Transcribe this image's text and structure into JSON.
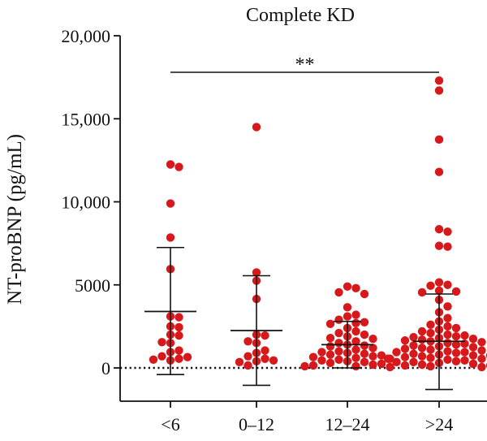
{
  "chart_data": {
    "type": "scatter",
    "title": "Complete KD",
    "xlabel": "",
    "ylabel": "NT-proBNP (pg/mL)",
    "ylim": [
      -2000,
      20000
    ],
    "yticks": [
      0,
      5000,
      10000,
      15000,
      20000
    ],
    "ytick_labels": [
      "0",
      "5000",
      "10,000",
      "15,000",
      "20,000"
    ],
    "categories": [
      "<6",
      "0–12",
      "12–24",
      ">24"
    ],
    "point_color": "#d7191c",
    "reference_line": {
      "y": 0,
      "style": "dotted"
    },
    "significance": {
      "label": "**",
      "from": "<6",
      "to": ">24",
      "y": 17800
    },
    "groups": [
      {
        "name": "<6",
        "mean": 3400,
        "sd_low": -400,
        "sd_high": 7250,
        "points": [
          12250,
          12100,
          9900,
          7850,
          5950,
          3100,
          3050,
          2500,
          2450,
          2000,
          1950,
          1550,
          1500,
          1050,
          950,
          700,
          650,
          550,
          500,
          450
        ]
      },
      {
        "name": "0–12",
        "mean": 2250,
        "sd_low": -1050,
        "sd_high": 5550,
        "points": [
          14500,
          5750,
          5250,
          4150,
          2000,
          1950,
          1600,
          1500,
          1050,
          900,
          700,
          550,
          450,
          400,
          350,
          150
        ]
      },
      {
        "name": "12–24",
        "mean": 1400,
        "sd_low": 0,
        "sd_high": 2800,
        "points": [
          4900,
          4800,
          4550,
          4450,
          3650,
          3200,
          3100,
          2900,
          2750,
          2700,
          2650,
          2400,
          2200,
          2100,
          2000,
          1900,
          1800,
          1750,
          1600,
          1500,
          1400,
          1350,
          1300,
          1200,
          1100,
          1000,
          950,
          900,
          850,
          800,
          750,
          700,
          650,
          600,
          550,
          500,
          450,
          400,
          350,
          300,
          250,
          200,
          150,
          100,
          100,
          50
        ]
      },
      {
        "name": ">24",
        "mean": 1600,
        "sd_low": -1300,
        "sd_high": 4450,
        "points": [
          17300,
          16700,
          13750,
          11800,
          8350,
          8200,
          7350,
          7300,
          5150,
          5000,
          4950,
          4650,
          4600,
          4550,
          4100,
          3700,
          3350,
          3000,
          2800,
          2600,
          2500,
          2400,
          2300,
          2200,
          2100,
          2000,
          1950,
          1900,
          1850,
          1800,
          1750,
          1700,
          1650,
          1600,
          1550,
          1500,
          1450,
          1400,
          1350,
          1300,
          1250,
          1200,
          1150,
          1100,
          1050,
          1000,
          950,
          900,
          850,
          800,
          750,
          700,
          650,
          600,
          550,
          500,
          450,
          400,
          350,
          300,
          250,
          200,
          150,
          100,
          50,
          950,
          750,
          550,
          350,
          150
        ]
      }
    ]
  }
}
